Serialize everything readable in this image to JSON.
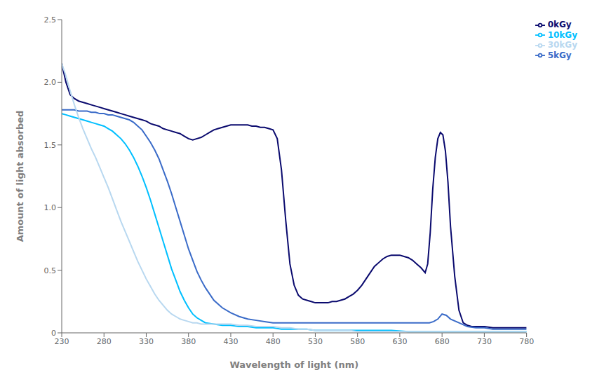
{
  "chart_data": {
    "type": "line",
    "xlabel": "Wavelength of light (nm)",
    "ylabel": "Amount of light absorbed",
    "xlim": [
      230,
      780
    ],
    "ylim": [
      0,
      2.5
    ],
    "xticks": [
      230,
      280,
      330,
      380,
      430,
      480,
      530,
      580,
      630,
      680,
      730,
      780
    ],
    "yticks": [
      0,
      0.5,
      {
        "value": 1,
        "label": "1.0"
      },
      1.5,
      {
        "value": 2,
        "label": "2.0"
      },
      2.5
    ],
    "grid": false,
    "legend": "upper right",
    "series": [
      {
        "name": "0kGy",
        "color": "#0a0a6e",
        "x": [
          230,
          235,
          240,
          245,
          250,
          255,
          260,
          265,
          270,
          275,
          280,
          285,
          290,
          295,
          300,
          305,
          310,
          315,
          320,
          325,
          330,
          335,
          340,
          345,
          350,
          355,
          360,
          365,
          370,
          375,
          380,
          385,
          390,
          395,
          400,
          405,
          410,
          415,
          420,
          425,
          430,
          435,
          440,
          445,
          450,
          455,
          460,
          465,
          470,
          475,
          480,
          485,
          490,
          495,
          500,
          505,
          510,
          515,
          520,
          525,
          530,
          535,
          540,
          545,
          550,
          555,
          560,
          565,
          570,
          575,
          580,
          585,
          590,
          595,
          600,
          605,
          610,
          615,
          620,
          625,
          630,
          635,
          640,
          645,
          650,
          655,
          660,
          663,
          666,
          669,
          672,
          675,
          678,
          681,
          684,
          687,
          690,
          695,
          700,
          705,
          710,
          715,
          720,
          725,
          730,
          740,
          750,
          760,
          770,
          780
        ],
        "values": [
          2.15,
          2.0,
          1.9,
          1.87,
          1.85,
          1.84,
          1.83,
          1.82,
          1.81,
          1.8,
          1.79,
          1.78,
          1.77,
          1.76,
          1.75,
          1.74,
          1.73,
          1.72,
          1.71,
          1.7,
          1.69,
          1.67,
          1.66,
          1.65,
          1.63,
          1.62,
          1.61,
          1.6,
          1.59,
          1.57,
          1.55,
          1.54,
          1.55,
          1.56,
          1.58,
          1.6,
          1.62,
          1.63,
          1.64,
          1.65,
          1.66,
          1.66,
          1.66,
          1.66,
          1.66,
          1.65,
          1.65,
          1.64,
          1.64,
          1.63,
          1.62,
          1.55,
          1.3,
          0.9,
          0.55,
          0.38,
          0.3,
          0.27,
          0.26,
          0.25,
          0.24,
          0.24,
          0.24,
          0.24,
          0.25,
          0.25,
          0.26,
          0.27,
          0.29,
          0.31,
          0.34,
          0.38,
          0.43,
          0.48,
          0.53,
          0.56,
          0.59,
          0.61,
          0.62,
          0.62,
          0.62,
          0.61,
          0.6,
          0.58,
          0.55,
          0.52,
          0.48,
          0.55,
          0.8,
          1.15,
          1.4,
          1.55,
          1.6,
          1.58,
          1.45,
          1.2,
          0.85,
          0.45,
          0.18,
          0.08,
          0.06,
          0.05,
          0.05,
          0.05,
          0.05,
          0.04,
          0.04,
          0.04,
          0.04,
          0.04
        ]
      },
      {
        "name": "5kGy",
        "color": "#3a6bc8",
        "x": [
          230,
          235,
          240,
          245,
          250,
          255,
          260,
          265,
          270,
          275,
          280,
          285,
          290,
          295,
          300,
          305,
          310,
          315,
          320,
          325,
          330,
          335,
          340,
          345,
          350,
          355,
          360,
          365,
          370,
          375,
          380,
          385,
          390,
          395,
          400,
          410,
          420,
          430,
          440,
          450,
          460,
          470,
          480,
          490,
          500,
          510,
          520,
          530,
          540,
          550,
          560,
          570,
          580,
          590,
          600,
          610,
          620,
          630,
          640,
          650,
          660,
          665,
          670,
          675,
          680,
          685,
          690,
          700,
          710,
          720,
          730,
          740,
          750,
          760,
          770,
          780
        ],
        "values": [
          1.78,
          1.78,
          1.78,
          1.78,
          1.77,
          1.77,
          1.77,
          1.76,
          1.76,
          1.75,
          1.75,
          1.74,
          1.74,
          1.73,
          1.72,
          1.71,
          1.7,
          1.68,
          1.65,
          1.62,
          1.57,
          1.52,
          1.46,
          1.39,
          1.3,
          1.21,
          1.11,
          1.0,
          0.89,
          0.78,
          0.67,
          0.58,
          0.49,
          0.42,
          0.36,
          0.26,
          0.2,
          0.16,
          0.13,
          0.11,
          0.1,
          0.09,
          0.08,
          0.08,
          0.08,
          0.08,
          0.08,
          0.08,
          0.08,
          0.08,
          0.08,
          0.08,
          0.08,
          0.08,
          0.08,
          0.08,
          0.08,
          0.08,
          0.08,
          0.08,
          0.08,
          0.08,
          0.09,
          0.11,
          0.15,
          0.14,
          0.11,
          0.08,
          0.05,
          0.04,
          0.04,
          0.03,
          0.03,
          0.03,
          0.03,
          0.03
        ]
      },
      {
        "name": "10kGy",
        "color": "#00bfff",
        "x": [
          230,
          235,
          240,
          245,
          250,
          255,
          260,
          265,
          270,
          275,
          280,
          285,
          290,
          295,
          300,
          305,
          310,
          315,
          320,
          325,
          330,
          335,
          340,
          345,
          350,
          355,
          360,
          365,
          370,
          375,
          380,
          385,
          390,
          395,
          400,
          410,
          420,
          430,
          440,
          450,
          460,
          470,
          480,
          490,
          500,
          510,
          520,
          530,
          540,
          550,
          560,
          570,
          580,
          590,
          600,
          620,
          640,
          660,
          680,
          700,
          720,
          740,
          760,
          780
        ],
        "values": [
          1.75,
          1.74,
          1.73,
          1.72,
          1.71,
          1.7,
          1.69,
          1.68,
          1.67,
          1.66,
          1.65,
          1.63,
          1.61,
          1.58,
          1.55,
          1.51,
          1.46,
          1.4,
          1.33,
          1.25,
          1.16,
          1.06,
          0.95,
          0.84,
          0.73,
          0.62,
          0.51,
          0.42,
          0.33,
          0.26,
          0.2,
          0.15,
          0.12,
          0.1,
          0.08,
          0.07,
          0.06,
          0.06,
          0.05,
          0.05,
          0.04,
          0.04,
          0.04,
          0.03,
          0.03,
          0.03,
          0.03,
          0.02,
          0.02,
          0.02,
          0.02,
          0.02,
          0.02,
          0.02,
          0.02,
          0.02,
          0.01,
          0.01,
          0.01,
          0.01,
          0.01,
          0.01,
          0.01,
          0.01
        ]
      },
      {
        "name": "30kGy",
        "color": "#b8d8f0",
        "x": [
          230,
          235,
          240,
          245,
          250,
          255,
          260,
          265,
          270,
          275,
          280,
          285,
          290,
          295,
          300,
          305,
          310,
          315,
          320,
          325,
          330,
          335,
          340,
          345,
          350,
          355,
          360,
          365,
          370,
          375,
          380,
          385,
          390,
          395,
          400,
          410,
          420,
          430,
          440,
          450,
          460,
          470,
          480,
          490,
          500,
          510,
          520,
          530,
          540,
          550,
          560,
          570,
          580,
          590,
          600,
          620,
          640,
          660,
          680,
          700,
          720,
          740,
          760,
          780
        ],
        "values": [
          2.15,
          2.05,
          1.93,
          1.82,
          1.72,
          1.63,
          1.55,
          1.47,
          1.4,
          1.32,
          1.24,
          1.16,
          1.07,
          0.98,
          0.89,
          0.81,
          0.73,
          0.65,
          0.57,
          0.5,
          0.43,
          0.37,
          0.31,
          0.26,
          0.22,
          0.18,
          0.15,
          0.13,
          0.11,
          0.1,
          0.09,
          0.08,
          0.08,
          0.07,
          0.07,
          0.07,
          0.07,
          0.07,
          0.06,
          0.06,
          0.05,
          0.05,
          0.05,
          0.04,
          0.04,
          0.03,
          0.03,
          0.02,
          0.02,
          0.02,
          0.02,
          0.02,
          0.01,
          0.01,
          0.01,
          0.01,
          0.01,
          0.01,
          0.01,
          0.01,
          0.01,
          0.01,
          0.01,
          0.01
        ]
      }
    ]
  }
}
